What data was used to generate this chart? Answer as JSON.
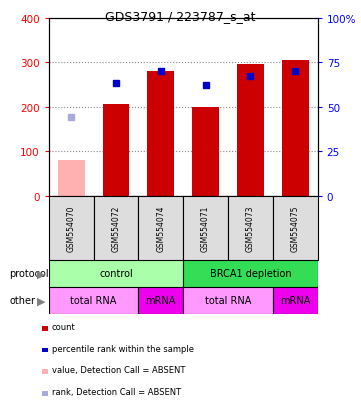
{
  "title": "GDS3791 / 223787_s_at",
  "samples": [
    "GSM554070",
    "GSM554072",
    "GSM554074",
    "GSM554071",
    "GSM554073",
    "GSM554075"
  ],
  "count_values": [
    null,
    205,
    280,
    200,
    295,
    305
  ],
  "count_absent": [
    80,
    null,
    null,
    null,
    null,
    null
  ],
  "rank_pct_values": [
    null,
    63,
    70,
    62,
    67,
    70
  ],
  "rank_pct_absent": [
    44,
    null,
    null,
    null,
    null,
    null
  ],
  "left_ylim": [
    0,
    400
  ],
  "right_ylim": [
    0,
    100
  ],
  "left_ticks": [
    0,
    100,
    200,
    300,
    400
  ],
  "right_ticks": [
    0,
    25,
    50,
    75,
    100
  ],
  "protocol_groups": [
    {
      "label": "control",
      "start": 0,
      "end": 3,
      "color": "#aaffaa"
    },
    {
      "label": "BRCA1 depletion",
      "start": 3,
      "end": 6,
      "color": "#33dd55"
    }
  ],
  "other_groups": [
    {
      "label": "total RNA",
      "start": 0,
      "end": 2,
      "color": "#ff99ff"
    },
    {
      "label": "mRNA",
      "start": 2,
      "end": 3,
      "color": "#ee00ee"
    },
    {
      "label": "total RNA",
      "start": 3,
      "end": 5,
      "color": "#ff99ff"
    },
    {
      "label": "mRNA",
      "start": 5,
      "end": 6,
      "color": "#ee00ee"
    }
  ],
  "bar_color_red": "#cc0000",
  "bar_color_pink": "#ffb0b0",
  "marker_color_blue": "#0000cc",
  "marker_color_lightblue": "#aaaadd",
  "legend_items": [
    {
      "color": "#cc0000",
      "label": "count"
    },
    {
      "color": "#0000cc",
      "label": "percentile rank within the sample"
    },
    {
      "color": "#ffb0b0",
      "label": "value, Detection Call = ABSENT"
    },
    {
      "color": "#aaaadd",
      "label": "rank, Detection Call = ABSENT"
    }
  ],
  "protocol_label": "protocol",
  "other_label": "other",
  "grid_color": "#888888",
  "sample_box_color": "#dddddd",
  "bar_width": 0.6
}
